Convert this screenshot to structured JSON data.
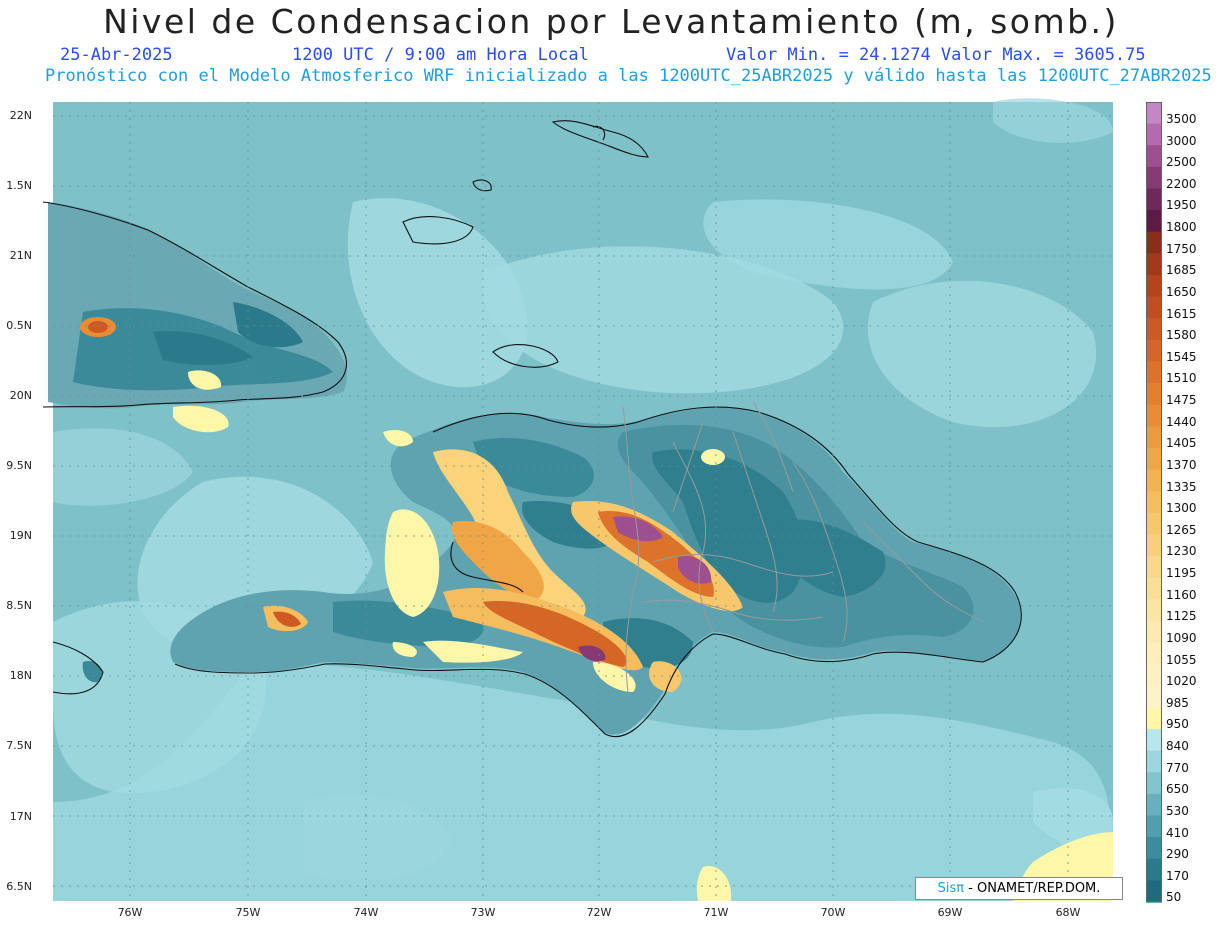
{
  "title": "Nivel de Condensacion por Levantamiento (m, somb.)",
  "date": "25-Abr-2025",
  "time": "1200 UTC / 9:00 am Hora Local",
  "minmax": "Valor Min. = 24.1274  Valor Max. = 3605.75",
  "model_line": "Pronóstico con el Modelo Atmosferico WRF inicializado a las 1200UTC_25ABR2025 y válido hasta las  1200UTC_27ABR2025",
  "lat_labels": [
    "22N",
    "1.5N",
    "21N",
    "0.5N",
    "20N",
    "9.5N",
    "19N",
    "8.5N",
    "18N",
    "7.5N",
    "17N",
    "6.5N"
  ],
  "lon_labels": [
    "76W",
    "75W",
    "74W",
    "73W",
    "72W",
    "71W",
    "70W",
    "69W",
    "68W"
  ],
  "legend_labels": [
    "3500",
    "3000",
    "2500",
    "2200",
    "1950",
    "1800",
    "1750",
    "1685",
    "1650",
    "1615",
    "1580",
    "1545",
    "1510",
    "1475",
    "1440",
    "1405",
    "1370",
    "1335",
    "1300",
    "1265",
    "1230",
    "1195",
    "1160",
    "1125",
    "1090",
    "1055",
    "1020",
    "985",
    "950",
    "840",
    "770",
    "650",
    "530",
    "410",
    "290",
    "170",
    "50"
  ],
  "legend_colors": [
    "#c487c6",
    "#b56aaf",
    "#9d4f8f",
    "#853a74",
    "#6e2859",
    "#5c1a45",
    "#8c2d1c",
    "#a3391b",
    "#b5441c",
    "#c24e1f",
    "#cc5a22",
    "#d66626",
    "#dd722a",
    "#e47f2f",
    "#e98c35",
    "#ed993d",
    "#f0a646",
    "#f3b251",
    "#f5bd5d",
    "#f7c76b",
    "#f8d07a",
    "#f9d889",
    "#fadf97",
    "#fbe5a4",
    "#fceab0",
    "#fdeeba",
    "#fdf1c3",
    "#fdf3ca",
    "#fef6a8",
    "#b7e7ec",
    "#9cd6de",
    "#82c4cd",
    "#68b1bc",
    "#509fac",
    "#3b8c9c",
    "#2a7a8c",
    "#1f6a7e"
  ],
  "credit": {
    "brand": "Sisπ",
    "rest": " - ONAMET/REP.DOM."
  }
}
